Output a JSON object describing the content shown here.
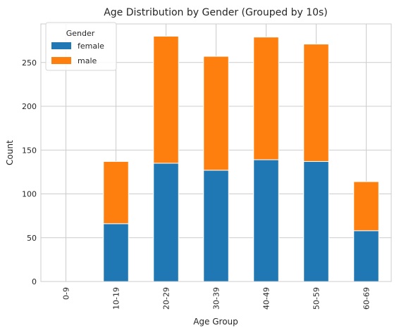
{
  "chart_data": {
    "type": "bar",
    "stacked": true,
    "title": "Age Distribution by Gender (Grouped by 10s)",
    "xlabel": "Age Group",
    "ylabel": "Count",
    "categories": [
      "0-9",
      "10-19",
      "20-29",
      "30-39",
      "40-49",
      "50-59",
      "60-69"
    ],
    "series": [
      {
        "name": "female",
        "color": "#1f77b4",
        "values": [
          0,
          66,
          135,
          127,
          139,
          137,
          58
        ]
      },
      {
        "name": "male",
        "color": "#ff7f0e",
        "values": [
          0,
          71,
          145,
          130,
          140,
          134,
          56
        ]
      }
    ],
    "yticks": [
      0,
      50,
      100,
      150,
      200,
      250
    ],
    "ylim": [
      0,
      294
    ],
    "grid": true,
    "legend": {
      "title": "Gender",
      "placement": "top-left"
    }
  }
}
